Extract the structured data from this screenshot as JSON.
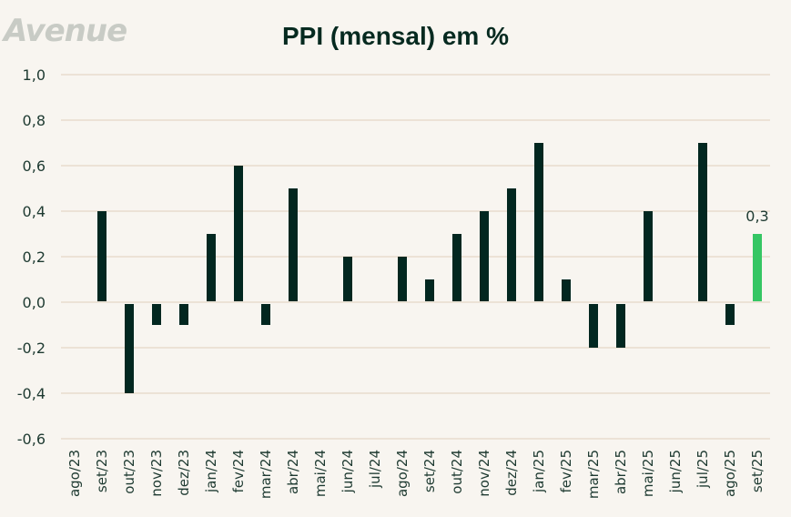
{
  "brand": {
    "logo_text": "Avenue"
  },
  "chart_data": {
    "type": "bar",
    "title": "PPI (mensal) em %",
    "xlabel": "",
    "ylabel": "",
    "ylim": [
      -0.6,
      1.0
    ],
    "yticks": [
      1.0,
      0.8,
      0.6,
      0.4,
      0.2,
      0.0,
      -0.2,
      -0.4,
      -0.6
    ],
    "ytick_labels": [
      "1,0",
      "0,8",
      "0,6",
      "0,4",
      "0,2",
      "0,0",
      "-0,2",
      "-0,4",
      "-0,6"
    ],
    "grid": true,
    "categories": [
      "ago/23",
      "set/23",
      "out/23",
      "nov/23",
      "dez/23",
      "jan/24",
      "fev/24",
      "mar/24",
      "abr/24",
      "mai/24",
      "jun/24",
      "jul/24",
      "ago/24",
      "set/24",
      "out/24",
      "nov/24",
      "dez/24",
      "jan/25",
      "fev/25",
      "mar/25",
      "abr/25",
      "mai/25",
      "jun/25",
      "jul/25",
      "ago/25",
      "set/25"
    ],
    "values": [
      0.0,
      0.4,
      -0.4,
      -0.1,
      -0.1,
      0.3,
      0.6,
      -0.1,
      0.5,
      0.0,
      0.2,
      0.0,
      0.2,
      0.1,
      0.3,
      0.4,
      0.5,
      0.7,
      0.1,
      -0.2,
      -0.2,
      0.4,
      0.0,
      0.7,
      -0.1,
      0.3
    ],
    "highlight_index": 25,
    "annotations": [
      {
        "category": "set/25",
        "text": "0,3"
      }
    ],
    "colors": {
      "bar": "#022720",
      "highlight": "#35c664",
      "grid": "#ece2d6",
      "text": "#1e3a31"
    }
  }
}
